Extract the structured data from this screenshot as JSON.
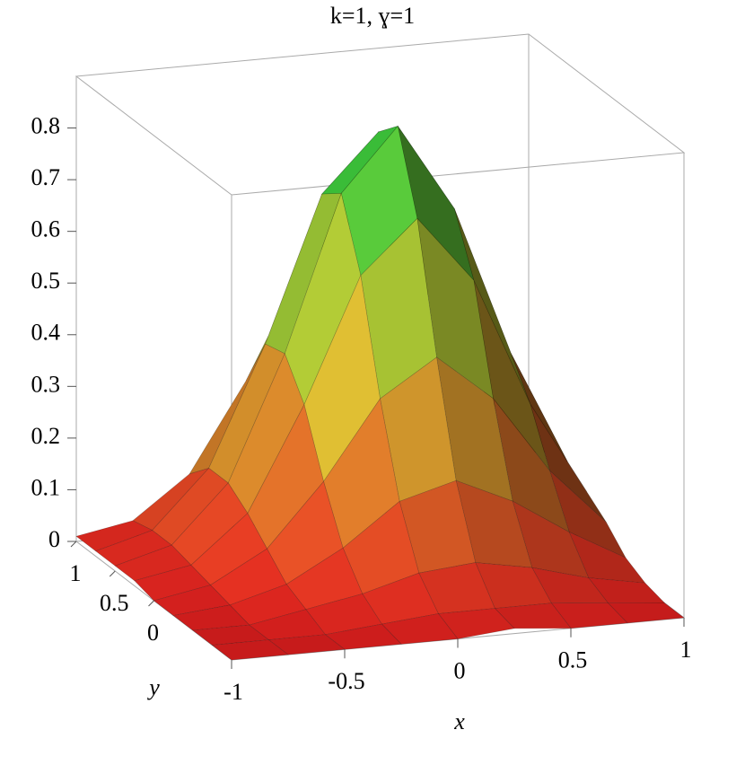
{
  "chart_data": {
    "type": "surface",
    "title": "k=1,  ɣ=1",
    "xlabel": "x",
    "ylabel": "y",
    "x": [
      -1,
      -0.75,
      -0.5,
      -0.25,
      0,
      0.25,
      0.5,
      0.75,
      1
    ],
    "y": [
      -1,
      -0.75,
      -0.5,
      -0.25,
      0,
      0.25,
      0.5,
      0.75,
      1
    ],
    "z": [
      [
        0,
        0,
        0,
        0,
        0,
        0.01,
        0,
        0,
        0
      ],
      [
        0,
        0,
        0,
        0.01,
        0.02,
        0.02,
        0.02,
        0.01,
        0
      ],
      [
        0,
        0,
        0.02,
        0.04,
        0.07,
        0.08,
        0.06,
        0.03,
        0.01
      ],
      [
        0,
        0.01,
        0.04,
        0.1,
        0.18,
        0.21,
        0.16,
        0.09,
        0.03
      ],
      [
        0,
        0.02,
        0.08,
        0.2,
        0.35,
        0.42,
        0.33,
        0.18,
        0.07
      ],
      [
        0.01,
        0.03,
        0.12,
        0.32,
        0.56,
        0.66,
        0.53,
        0.28,
        0.1
      ],
      [
        0.01,
        0.04,
        0.15,
        0.39,
        0.69,
        0.81,
        0.64,
        0.35,
        0.13
      ],
      [
        0.01,
        0.04,
        0.15,
        0.38,
        0.66,
        0.77,
        0.62,
        0.33,
        0.12
      ],
      [
        0.01,
        0.03,
        0.11,
        0.28,
        0.49,
        0.58,
        0.46,
        0.25,
        0.09
      ]
    ],
    "xlim": [
      -1,
      1
    ],
    "ylim": [
      -1,
      1
    ],
    "zlim": [
      0,
      0.9
    ],
    "xticks": [
      -1,
      -0.5,
      0,
      0.5,
      1
    ],
    "yticks": [
      0,
      0.5,
      1
    ],
    "zticks": [
      0,
      0.1,
      0.2,
      0.3,
      0.4,
      0.5,
      0.6,
      0.7,
      0.8
    ],
    "colormap": [
      "#e82020",
      "#f2e43a",
      "#18d040"
    ]
  }
}
